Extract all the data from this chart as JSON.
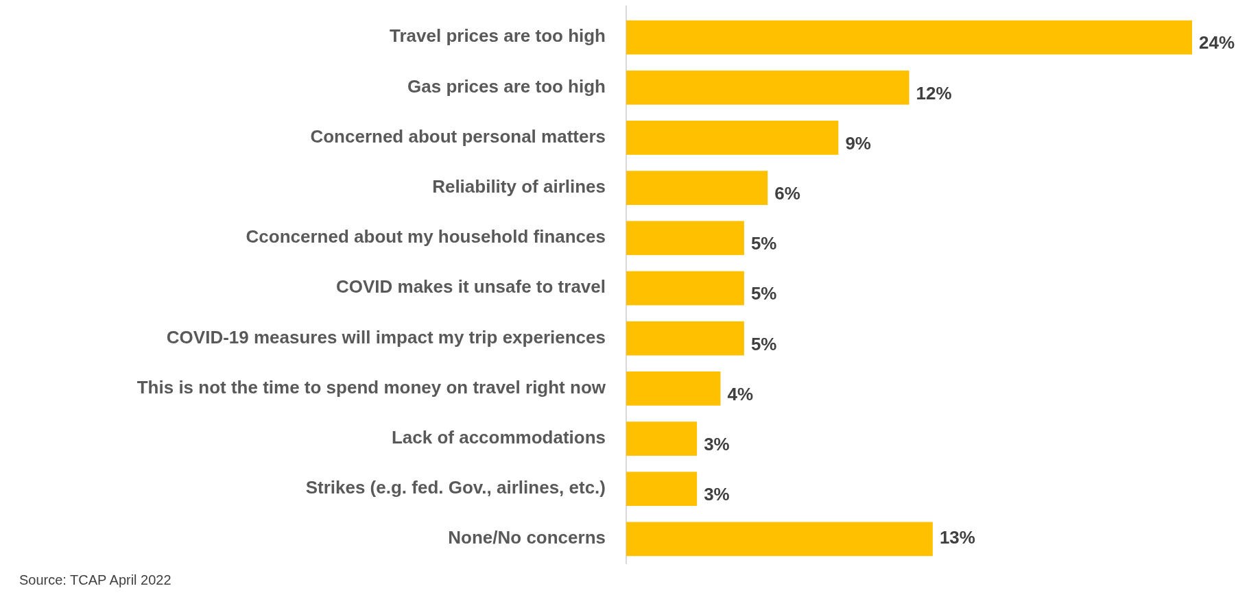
{
  "chart_data": {
    "type": "bar",
    "orientation": "horizontal",
    "categories": [
      "Travel prices are too high",
      "Gas prices are too high",
      "Concerned about personal matters",
      "Reliability of airlines",
      "Cconcerned about my household finances",
      "COVID makes it unsafe to travel",
      "COVID-19 measures will impact my trip experiences",
      "This is not the time to spend money on travel right now",
      "Lack of accommodations",
      "Strikes (e.g. fed. Gov., airlines, etc.)",
      "None/No concerns"
    ],
    "values": [
      24,
      12,
      9,
      6,
      5,
      5,
      5,
      4,
      3,
      3,
      13
    ],
    "color": "#ffc000",
    "data_labels": true,
    "value_labels": [
      "24%",
      "12%",
      "9%",
      "6%",
      "5%",
      "5%",
      "5%",
      "4%",
      "3%",
      "3%",
      "13%"
    ],
    "annotations": [
      "Source: TCAP April 2022"
    ]
  }
}
